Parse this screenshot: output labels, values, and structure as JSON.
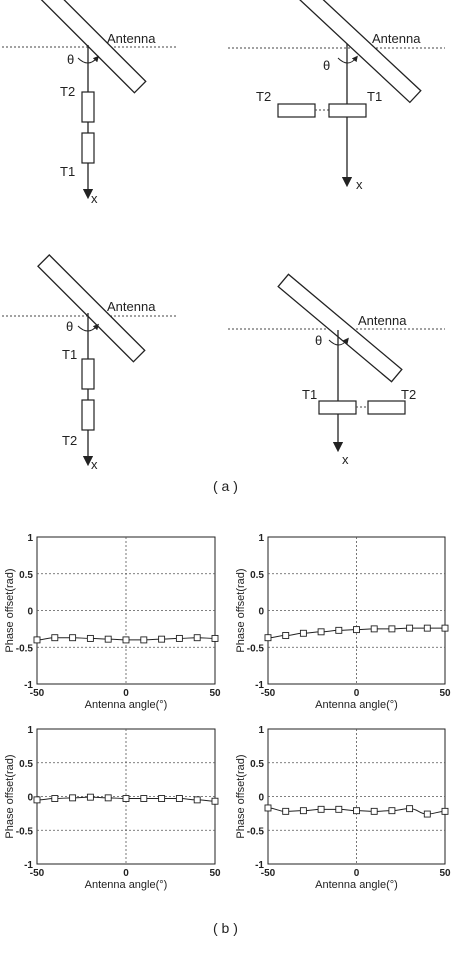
{
  "part_a": {
    "caption": "( a )",
    "diagrams": [
      {
        "antenna": "Antenna",
        "theta": "θ",
        "t_upper": "T2",
        "t_lower": "T1",
        "axis": "x"
      },
      {
        "antenna": "Antenna",
        "theta": "θ",
        "t_left": "T2",
        "t_right": "T1",
        "axis": "x"
      },
      {
        "antenna": "Antenna",
        "theta": "θ",
        "t_upper": "T1",
        "t_lower": "T2",
        "axis": "x"
      },
      {
        "antenna": "Antenna",
        "theta": "θ",
        "t_left": "T1",
        "t_right": "T2",
        "axis": "x"
      }
    ]
  },
  "part_b": {
    "caption": "( b )"
  },
  "chart_data": [
    {
      "type": "line",
      "xlabel": "Antenna angle(°)",
      "ylabel": "Phase offset(rad)",
      "xlim": [
        -50,
        50
      ],
      "ylim": [
        -1,
        1
      ],
      "xticks": [
        "-50",
        "0",
        "50"
      ],
      "yticks": [
        "1",
        "0.5",
        "0",
        "-0.5",
        "-1"
      ],
      "grid": "dotted",
      "marker": "square",
      "x": [
        -50,
        -40,
        -30,
        -20,
        -10,
        0,
        10,
        20,
        30,
        40,
        50
      ],
      "series": [
        {
          "values": [
            -0.4,
            -0.37,
            -0.37,
            -0.38,
            -0.39,
            -0.4,
            -0.4,
            -0.39,
            -0.38,
            -0.37,
            -0.38
          ]
        }
      ]
    },
    {
      "type": "line",
      "xlabel": "Antenna angle(°)",
      "ylabel": "Phase offset(rad)",
      "xlim": [
        -50,
        50
      ],
      "ylim": [
        -1,
        1
      ],
      "xticks": [
        "-50",
        "0",
        "50"
      ],
      "yticks": [
        "1",
        "0.5",
        "0",
        "-0.5",
        "-1"
      ],
      "grid": "dotted",
      "marker": "square",
      "x": [
        -50,
        -40,
        -30,
        -20,
        -10,
        0,
        10,
        20,
        30,
        40,
        50
      ],
      "series": [
        {
          "values": [
            -0.37,
            -0.34,
            -0.31,
            -0.29,
            -0.27,
            -0.26,
            -0.25,
            -0.25,
            -0.24,
            -0.24,
            -0.24
          ]
        }
      ]
    },
    {
      "type": "line",
      "xlabel": "Antenna angle(°)",
      "ylabel": "Phase offset(rad)",
      "xlim": [
        -50,
        50
      ],
      "ylim": [
        -1,
        1
      ],
      "xticks": [
        "-50",
        "0",
        "50"
      ],
      "yticks": [
        "1",
        "0.5",
        "0",
        "-0.5",
        "-1"
      ],
      "grid": "dotted",
      "marker": "square",
      "x": [
        -50,
        -40,
        -30,
        -20,
        -10,
        0,
        10,
        20,
        30,
        40,
        50
      ],
      "series": [
        {
          "values": [
            -0.05,
            -0.03,
            -0.02,
            -0.01,
            -0.02,
            -0.03,
            -0.03,
            -0.03,
            -0.03,
            -0.05,
            -0.07
          ]
        }
      ]
    },
    {
      "type": "line",
      "xlabel": "Antenna angle(°)",
      "ylabel": "Phase offset(rad)",
      "xlim": [
        -50,
        50
      ],
      "ylim": [
        -1,
        1
      ],
      "xticks": [
        "-50",
        "0",
        "50"
      ],
      "yticks": [
        "1",
        "0.5",
        "0",
        "-0.5",
        "-1"
      ],
      "grid": "dotted",
      "marker": "square",
      "x": [
        -50,
        -40,
        -30,
        -20,
        -10,
        0,
        10,
        20,
        30,
        40,
        50
      ],
      "series": [
        {
          "values": [
            -0.17,
            -0.22,
            -0.21,
            -0.19,
            -0.19,
            -0.21,
            -0.22,
            -0.21,
            -0.18,
            -0.26,
            -0.22
          ]
        }
      ]
    }
  ]
}
